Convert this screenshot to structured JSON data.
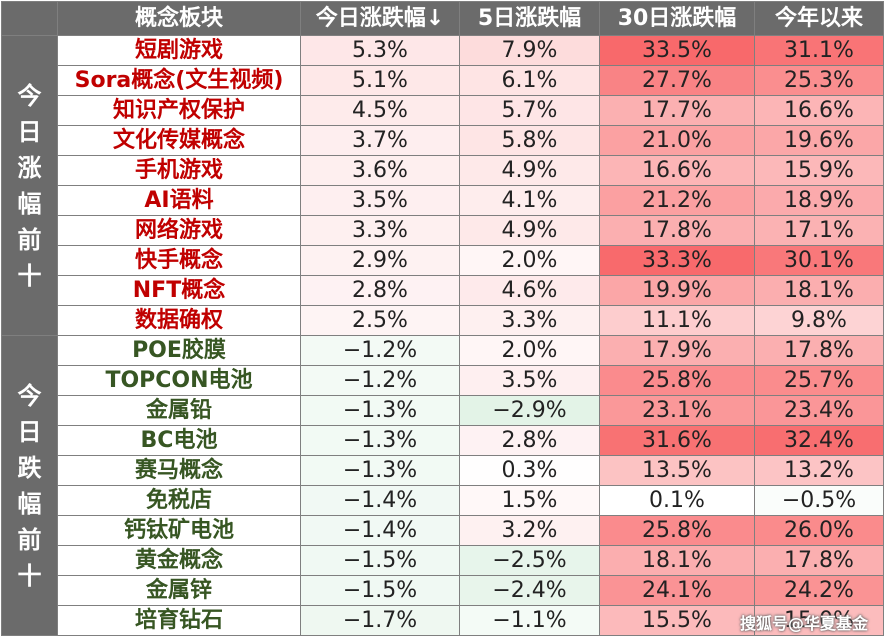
{
  "chart_data": {
    "type": "table",
    "headers": {
      "sector": "概念板块",
      "today": "今日涨跌幅↓",
      "d5": "5日涨跌幅",
      "d30": "30日涨跌幅",
      "ytd": "今年以来"
    },
    "groups": [
      {
        "label": "今日涨幅前十",
        "rows": [
          {
            "name": "短剧游戏",
            "today": 5.3,
            "d5": 7.9,
            "d30": 33.5,
            "ytd": 31.1
          },
          {
            "name": "Sora概念(文生视频)",
            "today": 5.1,
            "d5": 6.1,
            "d30": 27.7,
            "ytd": 25.3
          },
          {
            "name": "知识产权保护",
            "today": 4.5,
            "d5": 5.7,
            "d30": 17.7,
            "ytd": 16.6
          },
          {
            "name": "文化传媒概念",
            "today": 3.7,
            "d5": 5.8,
            "d30": 21.0,
            "ytd": 19.6
          },
          {
            "name": "手机游戏",
            "today": 3.6,
            "d5": 4.9,
            "d30": 16.6,
            "ytd": 15.9
          },
          {
            "name": "AI语料",
            "today": 3.5,
            "d5": 4.1,
            "d30": 21.2,
            "ytd": 18.9
          },
          {
            "name": "网络游戏",
            "today": 3.3,
            "d5": 4.9,
            "d30": 17.8,
            "ytd": 17.1
          },
          {
            "name": "快手概念",
            "today": 2.9,
            "d5": 2.0,
            "d30": 33.3,
            "ytd": 30.1
          },
          {
            "name": "NFT概念",
            "today": 2.8,
            "d5": 4.6,
            "d30": 19.9,
            "ytd": 18.1
          },
          {
            "name": "数据确权",
            "today": 2.5,
            "d5": 3.3,
            "d30": 11.1,
            "ytd": 9.8
          }
        ]
      },
      {
        "label": "今日跌幅前十",
        "rows": [
          {
            "name": "POE胶膜",
            "today": -1.2,
            "d5": 2.0,
            "d30": 17.9,
            "ytd": 17.8
          },
          {
            "name": "TOPCON电池",
            "today": -1.2,
            "d5": 3.5,
            "d30": 25.8,
            "ytd": 25.7
          },
          {
            "name": "金属铅",
            "today": -1.3,
            "d5": -2.9,
            "d30": 23.1,
            "ytd": 23.4
          },
          {
            "name": "BC电池",
            "today": -1.3,
            "d5": 2.8,
            "d30": 31.6,
            "ytd": 32.4
          },
          {
            "name": "赛马概念",
            "today": -1.3,
            "d5": 0.3,
            "d30": 13.5,
            "ytd": 13.2
          },
          {
            "name": "免税店",
            "today": -1.4,
            "d5": 1.5,
            "d30": 0.1,
            "ytd": -0.5
          },
          {
            "name": "钙钛矿电池",
            "today": -1.4,
            "d5": 3.2,
            "d30": 25.8,
            "ytd": 26.0
          },
          {
            "name": "黄金概念",
            "today": -1.5,
            "d5": -2.5,
            "d30": 18.1,
            "ytd": 17.8
          },
          {
            "name": "金属锌",
            "today": -1.5,
            "d5": -2.4,
            "d30": 24.1,
            "ytd": 24.2
          },
          {
            "name": "培育钻石",
            "today": -1.7,
            "d5": -1.1,
            "d30": 15.5,
            "ytd": 15.0
          }
        ]
      }
    ]
  },
  "watermark": "搜狐号@华夏基金",
  "colors": {
    "header_bg": "#6b6b6b",
    "up_text": "#c00000",
    "down_text": "#375623",
    "positive_max": "#f8696b",
    "negative_max": "#63be7b",
    "neutral": "#ffffff"
  }
}
